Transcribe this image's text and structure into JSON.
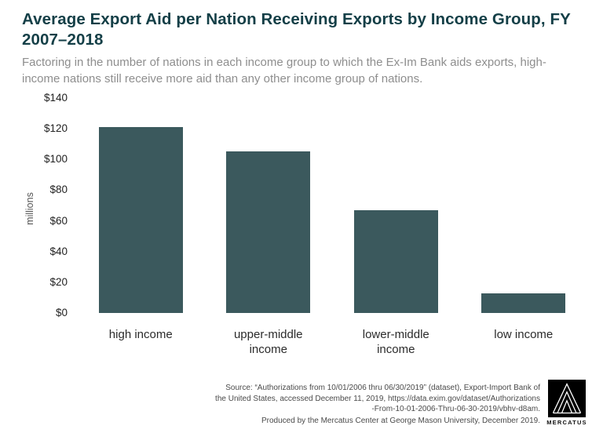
{
  "title": "Average Export Aid per Nation Receiving Exports by Income Group, FY 2007–2018",
  "subtitle": "Factoring in the number of nations in each income group to which the Ex-Im Bank aids exports, high-income nations still receive more aid than any other income group of nations.",
  "chart_data": {
    "type": "bar",
    "categories": [
      "high income",
      "upper-middle income",
      "lower-middle income",
      "low income"
    ],
    "values": [
      121,
      105,
      67,
      13
    ],
    "title": "Average Export Aid per Nation Receiving Exports by Income Group, FY 2007–2018",
    "xlabel": "",
    "ylabel": "millions",
    "ylim": [
      0,
      140
    ],
    "yticks": [
      "$140",
      "$120",
      "$100",
      "$80",
      "$60",
      "$40",
      "$20",
      "$0"
    ],
    "grid": false,
    "legend": "none",
    "bar_color": "#3b595d"
  },
  "source": {
    "lines": [
      "Source: “Authorizations from 10/01/2006 thru 06/30/2019” (dataset), Export-Import Bank of",
      "the United States, accessed December 11, 2019, https://data.exim.gov/dataset/Authorizations",
      "-From-10-01-2006-Thru-06-30-2019/vbhv-d8am."
    ],
    "produced": "Produced by the Mercatus Center at George Mason University, December 2019."
  },
  "logo": {
    "label": "MERCATUS"
  }
}
